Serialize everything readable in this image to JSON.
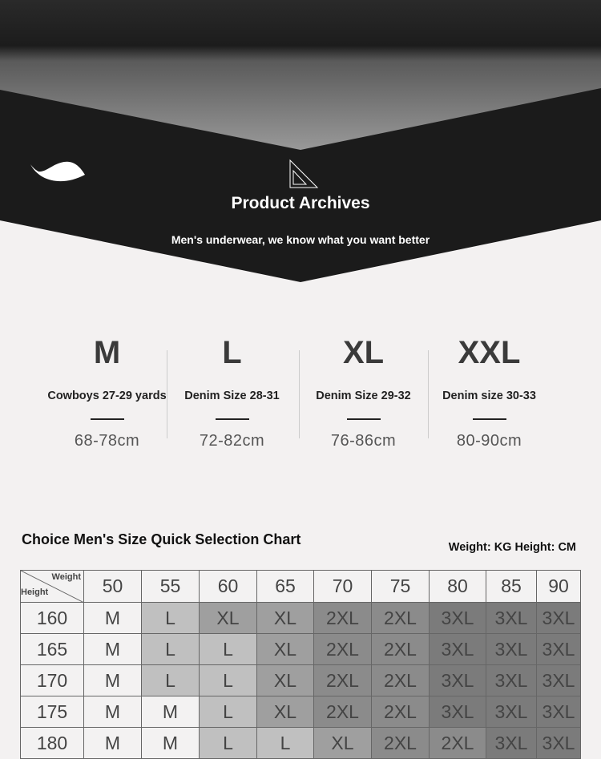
{
  "header": {
    "title": "Product Archives",
    "subtitle": "Men's underwear, we know what you want better",
    "logo_icon": "leaf-icon",
    "ruler_icon": "set-square-ruler-icon"
  },
  "sizes": [
    {
      "size": "M",
      "desc": "Cowboys 27-29 yards",
      "range": "68-78cm"
    },
    {
      "size": "L",
      "desc": "Denim Size 28-31",
      "range": "72-82cm"
    },
    {
      "size": "XL",
      "desc": "Denim Size 29-32",
      "range": "76-86cm"
    },
    {
      "size": "XXL",
      "desc": "Denim size 30-33",
      "range": "80-90cm"
    }
  ],
  "chart": {
    "title": "Choice Men's Size Quick Selection Chart",
    "units": "Weight: KG Height: CM",
    "corner_weight": "Weight",
    "corner_height": "Height",
    "weights": [
      "50",
      "55",
      "60",
      "65",
      "70",
      "75",
      "80",
      "85",
      "90"
    ],
    "rows": [
      {
        "height": "160",
        "cells": [
          "M",
          "L",
          "XL",
          "XL",
          "2XL",
          "2XL",
          "3XL",
          "3XL",
          "3XL"
        ]
      },
      {
        "height": "165",
        "cells": [
          "M",
          "L",
          "L",
          "XL",
          "2XL",
          "2XL",
          "3XL",
          "3XL",
          "3XL"
        ]
      },
      {
        "height": "170",
        "cells": [
          "M",
          "L",
          "L",
          "XL",
          "2XL",
          "2XL",
          "3XL",
          "3XL",
          "3XL"
        ]
      },
      {
        "height": "175",
        "cells": [
          "M",
          "M",
          "L",
          "XL",
          "2XL",
          "2XL",
          "3XL",
          "3XL",
          "3XL"
        ]
      },
      {
        "height": "180",
        "cells": [
          "M",
          "M",
          "L",
          "L",
          "XL",
          "2XL",
          "2XL",
          "3XL",
          "3XL"
        ]
      }
    ],
    "colors": {
      "M": "#f3f2f2",
      "L": "#c0c0c0",
      "XL": "#9f9f9f",
      "2XL": "#8b8b8b",
      "3XL": "#7b7b7b"
    }
  }
}
